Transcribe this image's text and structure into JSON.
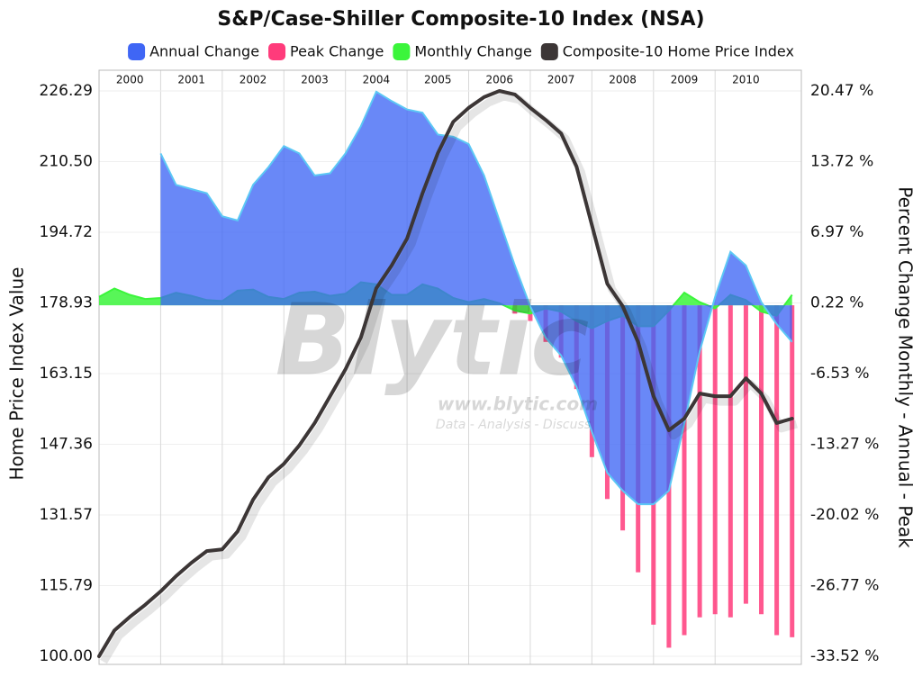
{
  "chart_data": {
    "type": "combo",
    "title": "S&P/Case-Shiller Composite-10 Index (NSA)",
    "ylabel": "Home Price Index Value",
    "y2label": "Percent Change Monthly - Annual - Peak",
    "watermark": {
      "logo": "Blytic",
      "url": "www.blytic.com",
      "tagline": "Data - Analysis - Discuss"
    },
    "legend": "top",
    "grid": true,
    "x": [
      2000,
      2000.25,
      2000.5,
      2000.75,
      2001,
      2001.25,
      2001.5,
      2001.75,
      2002,
      2002.25,
      2002.5,
      2002.75,
      2003,
      2003.25,
      2003.5,
      2003.75,
      2004,
      2004.25,
      2004.5,
      2004.75,
      2005,
      2005.25,
      2005.5,
      2005.75,
      2006,
      2006.25,
      2006.5,
      2006.75,
      2007,
      2007.25,
      2007.5,
      2007.75,
      2008,
      2008.25,
      2008.5,
      2008.75,
      2009,
      2009.25,
      2009.5,
      2009.75,
      2010,
      2010.25,
      2010.5,
      2010.75,
      2011,
      2011.25
    ],
    "xlim": [
      2000,
      2011.4
    ],
    "xticks": [
      2000,
      2001,
      2002,
      2003,
      2004,
      2005,
      2006,
      2007,
      2008,
      2009,
      2010
    ],
    "ylim": [
      100,
      226.29
    ],
    "yticks": [
      {
        "value": 100,
        "label": "100.00"
      },
      115.79,
      131.57,
      147.36,
      163.15,
      178.93,
      194.72,
      {
        "value": 210.5,
        "label": "210.50"
      },
      226.29
    ],
    "y2lim": [
      -33.52,
      20.47
    ],
    "y2ticks": [
      {
        "value": -33.52,
        "label": "-33.52 %"
      },
      {
        "value": -26.77,
        "label": "-26.77 %"
      },
      {
        "value": -20.02,
        "label": "-20.02 %"
      },
      {
        "value": -13.27,
        "label": "-13.27 %"
      },
      {
        "value": -6.53,
        "label": "-6.53 %"
      },
      {
        "value": 0.22,
        "label": "0.22 %"
      },
      {
        "value": 6.97,
        "label": "6.97 %"
      },
      {
        "value": 13.72,
        "label": "13.72 %"
      },
      {
        "value": 20.47,
        "label": "20.47 %"
      }
    ],
    "series": [
      {
        "name": "Annual Change",
        "type": "area",
        "axis": "y2",
        "color": "#3f66f5",
        "values": [
          null,
          null,
          null,
          null,
          14.5,
          11.5,
          11.1,
          10.7,
          8.5,
          8.1,
          11.5,
          13.2,
          15.2,
          14.5,
          12.4,
          12.6,
          14.5,
          17.1,
          20.4,
          19.5,
          18.7,
          18.4,
          16.3,
          16.1,
          15.4,
          12.4,
          8.1,
          3.8,
          -0.1,
          -3.1,
          -4.8,
          -7.8,
          -12.1,
          -16.0,
          -17.7,
          -19.0,
          -19.0,
          -17.7,
          -11.3,
          -4.4,
          0.8,
          5.1,
          3.8,
          0.3,
          -1.8,
          -3.5
        ]
      },
      {
        "name": "Peak Change",
        "type": "bar",
        "axis": "y2",
        "color": "#ff3b7b",
        "values": [
          0,
          0,
          0,
          0,
          0,
          0,
          0,
          0,
          0,
          0,
          0,
          0,
          0,
          0,
          0,
          0,
          0,
          0,
          0,
          0,
          0,
          0,
          0,
          0,
          0,
          0,
          0,
          -0.8,
          -1.5,
          -3.5,
          -5.0,
          -8.0,
          -14.5,
          -18.5,
          -21.5,
          -25.5,
          -30.5,
          -32.7,
          -31.5,
          -29.8,
          -29.5,
          -29.8,
          -28.5,
          -29.5,
          -31.5,
          -31.7
        ]
      },
      {
        "name": "Monthly Change",
        "type": "area",
        "axis": "y2",
        "color": "#3bf53b",
        "values": [
          0.8,
          1.6,
          1.0,
          0.6,
          0.7,
          1.2,
          0.9,
          0.5,
          0.4,
          1.4,
          1.5,
          0.8,
          0.6,
          1.2,
          1.3,
          0.9,
          1.1,
          2.2,
          2.0,
          1.0,
          1.0,
          2.0,
          1.6,
          0.7,
          0.3,
          0.6,
          0.2,
          -0.5,
          -0.8,
          -0.3,
          -0.6,
          -1.5,
          -2.2,
          -1.5,
          -1.0,
          -2.0,
          -2.0,
          -0.5,
          1.2,
          0.3,
          -0.3,
          1.0,
          0.5,
          -0.6,
          -1.0,
          1.0
        ]
      },
      {
        "name": "Composite-10 Home Price Index",
        "type": "line",
        "axis": "y",
        "color": "#3c3636",
        "values": [
          100.0,
          105.8,
          108.8,
          111.5,
          114.5,
          117.9,
          120.9,
          123.5,
          123.9,
          127.9,
          135.0,
          140.0,
          143.0,
          147.1,
          152.1,
          158.1,
          164.1,
          171.2,
          182.2,
          187.3,
          193.3,
          203.4,
          212.4,
          219.4,
          222.5,
          224.9,
          226.3,
          225.5,
          222.5,
          219.8,
          216.8,
          209.4,
          196.3,
          183.2,
          178.2,
          170.2,
          158.1,
          150.5,
          153.1,
          158.7,
          158.1,
          158.1,
          162.1,
          158.7,
          152.1,
          153.1
        ]
      }
    ]
  }
}
